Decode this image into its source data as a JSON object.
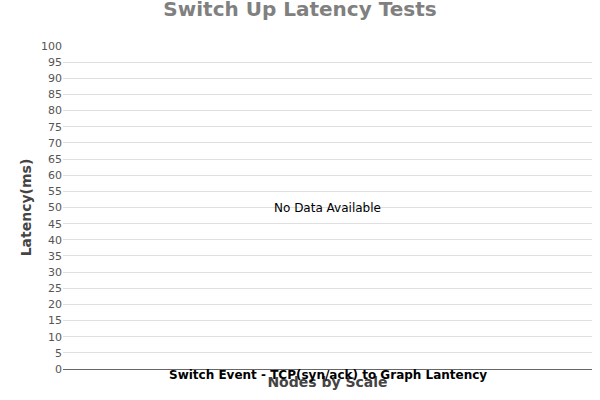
{
  "chart_data": {
    "type": "bar",
    "title": "Switch Up Latency Tests",
    "subtitle": "Switch Event - TCP(syn/ack) to Graph Lantency",
    "x_label": "Nodes by Scale",
    "y_label": "Latency(ms)",
    "annotation": "No Data Available",
    "categories": [],
    "values": [],
    "ylim": [
      0,
      100
    ],
    "yticks": [
      0,
      5,
      10,
      15,
      20,
      25,
      30,
      35,
      40,
      45,
      50,
      55,
      60,
      65,
      70,
      75,
      80,
      85,
      90,
      95,
      100
    ],
    "grid": true,
    "tick_labels": "y"
  }
}
